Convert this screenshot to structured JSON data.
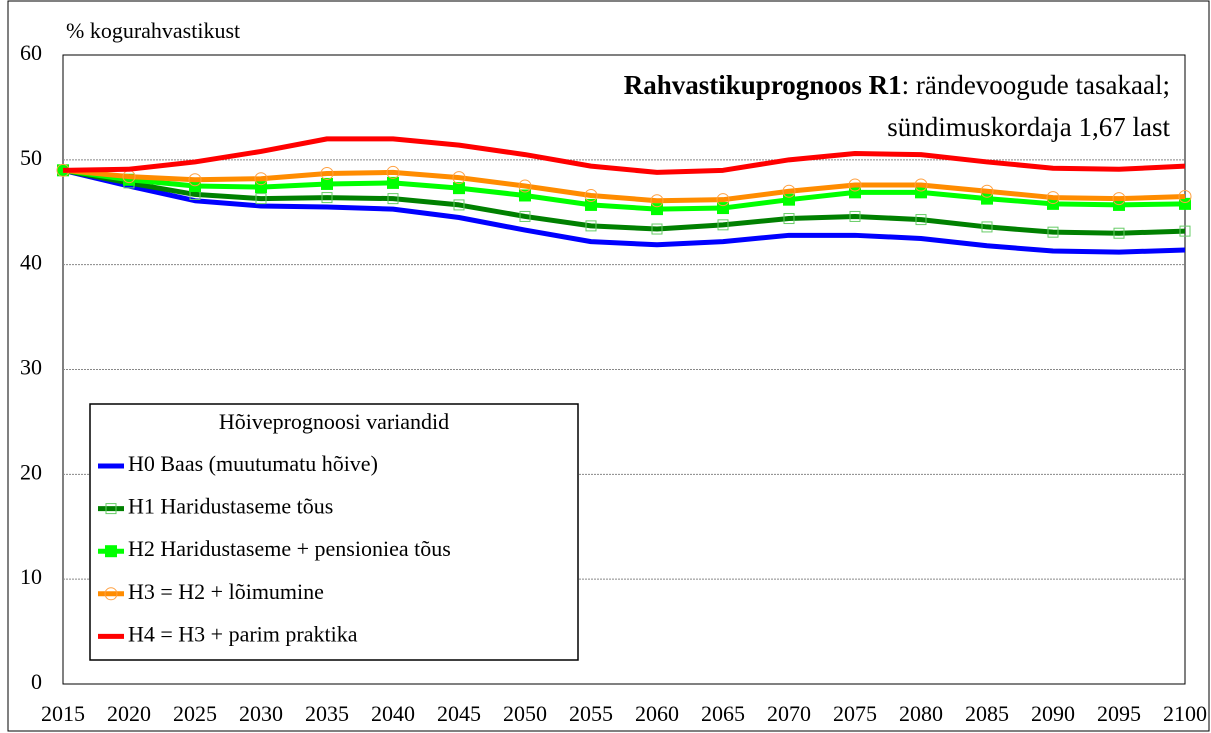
{
  "chart_data": {
    "type": "line",
    "title_bold": "Rahvastikuprognoos R1",
    "title_rest": ": rändevoogude tasakaal;",
    "subtitle": "sündimuskordaja 1,67 last",
    "y_label": "% kogurahvastikust",
    "legend_title": "Hõiveprognoosi variandid",
    "legend_position": "lower-left",
    "categories": [
      "2015",
      "2020",
      "2025",
      "2030",
      "2035",
      "2040",
      "2045",
      "2050",
      "2055",
      "2060",
      "2065",
      "2070",
      "2075",
      "2080",
      "2085",
      "2090",
      "2095",
      "2100"
    ],
    "ylim": [
      0,
      60
    ],
    "yticks": [
      0,
      10,
      20,
      30,
      40,
      50,
      60
    ],
    "grid": true,
    "series": [
      {
        "name": "H0 Baas (muutumatu hõive)",
        "color": "#0000ff",
        "marker": "none",
        "values": [
          49,
          47.5,
          46.1,
          45.6,
          45.5,
          45.3,
          44.5,
          43.3,
          42.2,
          41.9,
          42.2,
          42.8,
          42.8,
          42.5,
          41.8,
          41.3,
          41.2,
          41.4
        ]
      },
      {
        "name": "H1 Haridustaseme tõus",
        "color": "#008000",
        "marker": "square-open",
        "values": [
          49,
          47.8,
          46.7,
          46.3,
          46.4,
          46.3,
          45.7,
          44.6,
          43.7,
          43.4,
          43.8,
          44.4,
          44.6,
          44.3,
          43.6,
          43.1,
          43.0,
          43.2
        ]
      },
      {
        "name": "H2 Haridustaseme + pensioniea tõus",
        "color": "#00ff00",
        "marker": "square",
        "values": [
          49,
          48.1,
          47.5,
          47.4,
          47.7,
          47.8,
          47.3,
          46.6,
          45.7,
          45.3,
          45.4,
          46.2,
          46.9,
          46.9,
          46.3,
          45.8,
          45.7,
          45.8
        ]
      },
      {
        "name": "H3 = H2 + lõimumine",
        "color": "#ff8c00",
        "marker": "circle-open",
        "values": [
          49,
          48.4,
          48.1,
          48.2,
          48.7,
          48.8,
          48.3,
          47.5,
          46.6,
          46.1,
          46.2,
          47.0,
          47.6,
          47.6,
          47.0,
          46.4,
          46.3,
          46.5
        ]
      },
      {
        "name": "H4 = H3 + parim praktika",
        "color": "#ff0000",
        "marker": "none",
        "values": [
          49,
          49.1,
          49.8,
          50.8,
          52.0,
          52.0,
          51.4,
          50.5,
          49.4,
          48.8,
          49.0,
          50.0,
          50.6,
          50.5,
          49.8,
          49.2,
          49.1,
          49.4
        ]
      }
    ]
  }
}
